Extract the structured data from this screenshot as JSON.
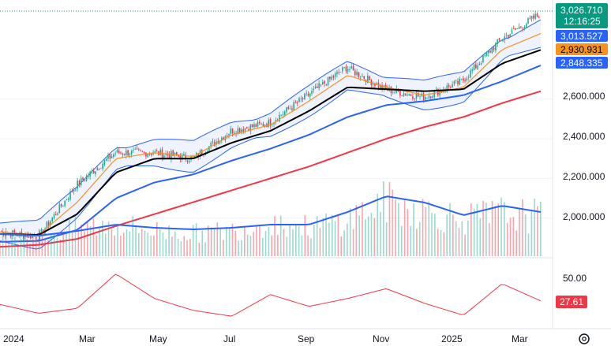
{
  "chart_data": [
    {
      "panel": "price",
      "type": "candlestick",
      "x": [
        "2024-01",
        "2024-02",
        "2024-03",
        "2024-04",
        "2024-05",
        "2024-06",
        "2024-07",
        "2024-08",
        "2024-09",
        "2024-10",
        "2024-11",
        "2024-12",
        "2025-01",
        "2025-02",
        "2025-03"
      ],
      "close_approx": [
        1930,
        1905,
        2170,
        2330,
        2330,
        2300,
        2440,
        2480,
        2620,
        2760,
        2650,
        2610,
        2690,
        2900,
        3026.71
      ],
      "last_price": "3,026.710",
      "countdown": "12:16:25",
      "series": [
        {
          "name": "",
          "color": "#f7931a",
          "values": [
            1930,
            1915,
            2080,
            2300,
            2330,
            2310,
            2420,
            2470,
            2590,
            2720,
            2660,
            2620,
            2660,
            2850,
            2930.931
          ]
        },
        {
          "name": "",
          "color": "#000000",
          "values": [
            1920,
            1915,
            2020,
            2230,
            2300,
            2300,
            2380,
            2440,
            2540,
            2660,
            2650,
            2640,
            2650,
            2780,
            2848.335
          ]
        },
        {
          "name": "",
          "color": "#2962ff",
          "values": [
            1880,
            1885,
            1940,
            2100,
            2180,
            2220,
            2290,
            2350,
            2420,
            2510,
            2570,
            2590,
            2620,
            2690,
            2770
          ]
        },
        {
          "name": "",
          "color": "#f23645",
          "values": [
            1855,
            1865,
            1895,
            1960,
            2020,
            2080,
            2140,
            2200,
            2260,
            2330,
            2400,
            2460,
            2510,
            2580,
            2640
          ]
        }
      ],
      "bollinger_upper_last": "3,013.527",
      "y_ticks": [
        "2,000.000",
        "2,200.000",
        "2,400.000",
        "2,600.000"
      ],
      "ylim": [
        1800,
        3100
      ]
    },
    {
      "panel": "volume",
      "type": "bar",
      "x": [
        "2024-01",
        "2024-02",
        "2024-03",
        "2024-04",
        "2024-05",
        "2024-06",
        "2024-07",
        "2024-08",
        "2024-09",
        "2024-10",
        "2024-11",
        "2024-12",
        "2025-01",
        "2025-02",
        "2025-03"
      ],
      "values": [
        0.8,
        0.7,
        1.0,
        1.1,
        0.9,
        0.8,
        0.9,
        1.2,
        1.0,
        1.3,
        1.9,
        1.6,
        1.3,
        1.5,
        1.4
      ],
      "ma_values": [
        0.7,
        0.65,
        0.8,
        1.0,
        0.9,
        0.85,
        0.9,
        1.0,
        1.0,
        1.4,
        1.9,
        1.7,
        1.3,
        1.6,
        1.4
      ]
    },
    {
      "panel": "oscillator",
      "type": "line",
      "color": "#f23645",
      "x": [
        "2024-01",
        "2024-02",
        "2024-03",
        "2024-04",
        "2024-05",
        "2024-06",
        "2024-07",
        "2024-08",
        "2024-09",
        "2024-10",
        "2024-11",
        "2024-12",
        "2025-01",
        "2025-02",
        "2025-03"
      ],
      "values": [
        24,
        15,
        20,
        55,
        30,
        18,
        12,
        34,
        22,
        30,
        40,
        25,
        13,
        45,
        27.61
      ],
      "y_ticks": [
        "50.00"
      ],
      "last_value": "27.61"
    }
  ],
  "x_axis_labels": [
    "2024",
    "Mar",
    "May",
    "Jul",
    "Sep",
    "Nov",
    "2025",
    "Mar"
  ],
  "badges": {
    "price_last": "3,026.710",
    "countdown": "12:16:25",
    "bb_upper": "3,013.527",
    "ma_fast": "2,930.931",
    "ma_slow": "2,848.335",
    "osc_last": "27.61"
  },
  "colors": {
    "up": "#22ab94",
    "down": "#f23645",
    "badge_green": "#089981",
    "badge_blue": "#2962ff",
    "badge_orange": "#f7931a",
    "badge_black": "#000000",
    "badge_red": "#f23645"
  }
}
